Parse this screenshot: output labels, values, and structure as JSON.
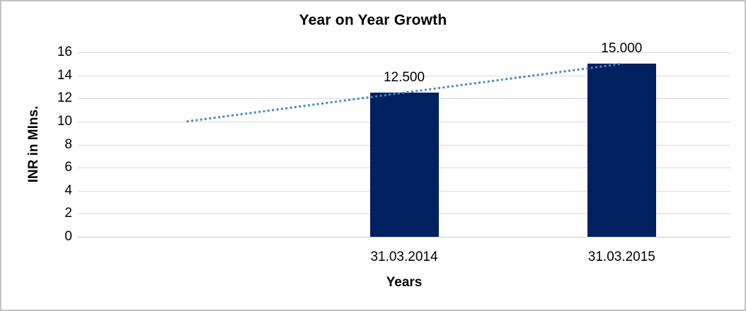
{
  "chart_data": {
    "type": "bar",
    "title": "Year on Year Growth",
    "categories": [
      "31.03.2014",
      "31.03.2015"
    ],
    "values": [
      12.5,
      15
    ],
    "data_labels": [
      "12.500",
      "15.000"
    ],
    "xlabel": "Years",
    "ylabel": "INR in Mlns.",
    "ylim": [
      0,
      16
    ],
    "yticks": [
      0,
      2,
      4,
      6,
      8,
      10,
      12,
      14,
      16
    ],
    "grid": true,
    "legend": "none",
    "colors": {
      "bar": "#002060",
      "trendline": "#4A86C8",
      "gridline": "#D9D9D9",
      "text": "#000000"
    },
    "trendline": {
      "type": "linear",
      "style": "dotted",
      "start_value": 10,
      "end_value": 15
    }
  }
}
